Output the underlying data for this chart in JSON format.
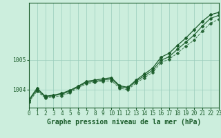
{
  "title": "Graphe pression niveau de la mer (hPa)",
  "x_labels": [
    "0",
    "1",
    "2",
    "3",
    "4",
    "5",
    "6",
    "7",
    "8",
    "9",
    "10",
    "11",
    "12",
    "13",
    "14",
    "15",
    "16",
    "17",
    "18",
    "19",
    "20",
    "21",
    "22",
    "23"
  ],
  "hours": [
    0,
    1,
    2,
    3,
    4,
    5,
    6,
    7,
    8,
    9,
    10,
    11,
    12,
    13,
    14,
    15,
    16,
    17,
    18,
    19,
    20,
    21,
    22,
    23
  ],
  "line_upper": [
    1003.65,
    1004.05,
    1003.78,
    1003.82,
    1003.88,
    1003.98,
    1004.12,
    1004.28,
    1004.32,
    1004.36,
    1004.4,
    1004.13,
    1004.08,
    1004.32,
    1004.52,
    1004.72,
    1005.08,
    1005.22,
    1005.48,
    1005.72,
    1006.0,
    1006.28,
    1006.5,
    1006.58
  ],
  "line_mid": [
    1003.62,
    1004.0,
    1003.75,
    1003.8,
    1003.85,
    1003.95,
    1004.1,
    1004.24,
    1004.28,
    1004.32,
    1004.36,
    1004.1,
    1004.05,
    1004.28,
    1004.46,
    1004.65,
    1004.98,
    1005.1,
    1005.35,
    1005.58,
    1005.82,
    1006.12,
    1006.38,
    1006.48
  ],
  "line_lower": [
    1003.58,
    1003.95,
    1003.72,
    1003.76,
    1003.8,
    1003.9,
    1004.06,
    1004.2,
    1004.25,
    1004.28,
    1004.3,
    1004.05,
    1004.0,
    1004.22,
    1004.4,
    1004.58,
    1004.9,
    1005.02,
    1005.22,
    1005.45,
    1005.65,
    1005.95,
    1006.22,
    1006.35
  ],
  "ylim": [
    1003.4,
    1006.9
  ],
  "yticks": [
    1004,
    1005
  ],
  "bg_color": "#cceedd",
  "grid_color": "#99ccbb",
  "line_color": "#1a5c2a",
  "title_color": "#1a5c2a",
  "title_fontsize": 7.0,
  "tick_fontsize": 5.8,
  "marker_size": 2.0,
  "figwidth": 3.2,
  "figheight": 2.0,
  "dpi": 100
}
